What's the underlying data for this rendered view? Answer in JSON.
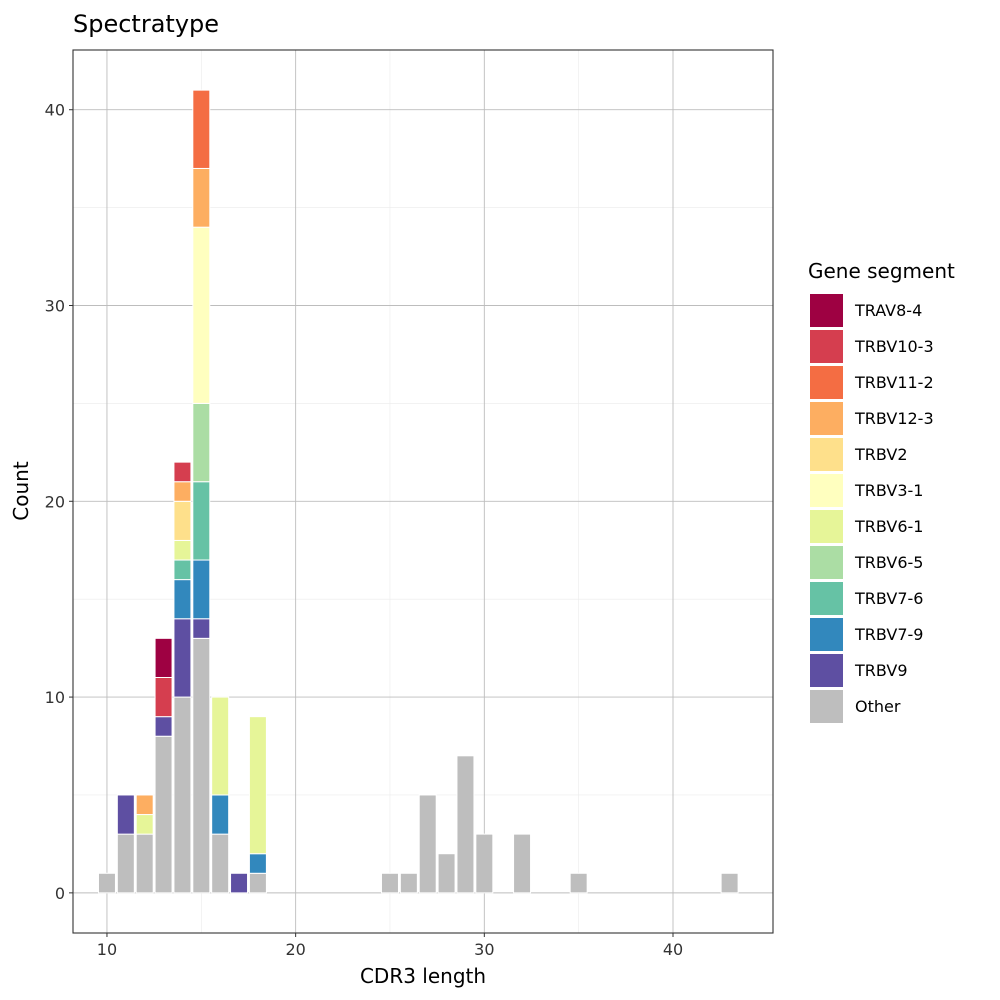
{
  "chart_data": {
    "type": "bar",
    "stacked": true,
    "title": "Spectratype",
    "xlabel": "CDR3 length",
    "ylabel": "Count",
    "xlim": [
      8.2,
      45.3
    ],
    "ylim": [
      -2.05,
      43.05
    ],
    "xticks": [
      10,
      20,
      30,
      40
    ],
    "yticks": [
      0,
      10,
      20,
      30,
      40
    ],
    "grid": true,
    "legend": {
      "title": "Gene segment",
      "position": "right"
    },
    "series_order": [
      "Other",
      "TRBV9",
      "TRBV7-9",
      "TRBV7-6",
      "TRBV6-5",
      "TRBV6-1",
      "TRBV3-1",
      "TRBV2",
      "TRBV12-3",
      "TRBV11-2",
      "TRBV10-3",
      "TRAV8-4"
    ],
    "series": [
      {
        "name": "TRAV8-4",
        "color": "#9E0142",
        "x": [
          13
        ],
        "values": [
          2
        ]
      },
      {
        "name": "TRBV10-3",
        "color": "#D53E4F",
        "x": [
          13,
          14
        ],
        "values": [
          2,
          1
        ]
      },
      {
        "name": "TRBV11-2",
        "color": "#F46D43",
        "x": [
          15
        ],
        "values": [
          4
        ]
      },
      {
        "name": "TRBV12-3",
        "color": "#FDAE61",
        "x": [
          12,
          14,
          15
        ],
        "values": [
          1,
          1,
          3
        ]
      },
      {
        "name": "TRBV2",
        "color": "#FEE08B",
        "x": [
          14
        ],
        "values": [
          2
        ]
      },
      {
        "name": "TRBV3-1",
        "color": "#FFFFBF",
        "x": [
          15
        ],
        "values": [
          9
        ]
      },
      {
        "name": "TRBV6-1",
        "color": "#E6F598",
        "x": [
          12,
          14,
          16,
          18
        ],
        "values": [
          1,
          1,
          5,
          7
        ]
      },
      {
        "name": "TRBV6-5",
        "color": "#ABDDA4",
        "x": [
          15
        ],
        "values": [
          4
        ]
      },
      {
        "name": "TRBV7-6",
        "color": "#66C2A5",
        "x": [
          14,
          15
        ],
        "values": [
          1,
          4
        ]
      },
      {
        "name": "TRBV7-9",
        "color": "#3288BD",
        "x": [
          14,
          15,
          16,
          18
        ],
        "values": [
          2,
          3,
          2,
          1
        ]
      },
      {
        "name": "TRBV9",
        "color": "#5E4FA2",
        "x": [
          11,
          13,
          14,
          15,
          17
        ],
        "values": [
          2,
          1,
          4,
          1,
          1
        ]
      },
      {
        "name": "Other",
        "color": "#BEBEBE",
        "x": [
          10,
          11,
          12,
          13,
          14,
          15,
          16,
          18,
          25,
          26,
          27,
          28,
          29,
          30,
          32,
          35,
          43
        ],
        "values": [
          1,
          3,
          3,
          8,
          10,
          13,
          3,
          1,
          1,
          1,
          5,
          2,
          7,
          3,
          3,
          1,
          1
        ]
      }
    ]
  }
}
